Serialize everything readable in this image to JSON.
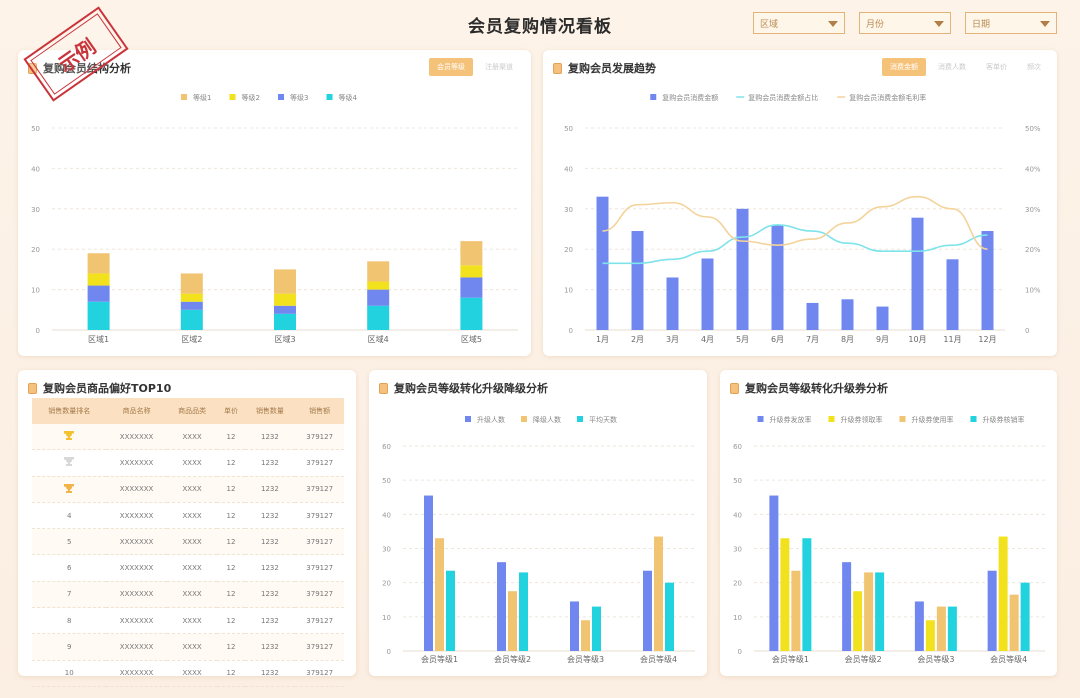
{
  "header": {
    "title": "会员复购情况看板",
    "filters": [
      {
        "label": "区域"
      },
      {
        "label": "月份"
      },
      {
        "label": "日期"
      }
    ],
    "stamp": "示例"
  },
  "colors": {
    "level1": "#f0c471",
    "level2": "#f2e21d",
    "level3": "#7087f0",
    "level4": "#22d2df",
    "bar_blue": "#7087f0",
    "line_cyan": "#7ee3ea",
    "line_orange": "#f4d39b"
  },
  "panels": {
    "structure": {
      "title": "复购会员结构分析",
      "tabs": [
        "会员等级",
        "注册渠道"
      ],
      "active_tab": 0
    },
    "trend": {
      "title": "复购会员发展趋势",
      "tabs": [
        "消费金额",
        "消费人数",
        "客单价",
        "频次"
      ],
      "active_tab": 0
    },
    "top10": {
      "title": "复购会员商品偏好TOP10",
      "columns": [
        "销售数量排名",
        "商品名称",
        "商品品类",
        "单价",
        "销售数量",
        "销售额"
      ],
      "rows": [
        {
          "rank": "",
          "trophy": "gold",
          "name": "XXXXXXX",
          "cat": "XXXX",
          "price": "12",
          "qty": "1232",
          "amount": "379127"
        },
        {
          "rank": "",
          "trophy": "silver",
          "name": "XXXXXXX",
          "cat": "XXXX",
          "price": "12",
          "qty": "1232",
          "amount": "379127"
        },
        {
          "rank": "",
          "trophy": "bronze",
          "name": "XXXXXXX",
          "cat": "XXXX",
          "price": "12",
          "qty": "1232",
          "amount": "379127"
        },
        {
          "rank": "4",
          "trophy": "",
          "name": "XXXXXXX",
          "cat": "XXXX",
          "price": "12",
          "qty": "1232",
          "amount": "379127"
        },
        {
          "rank": "5",
          "trophy": "",
          "name": "XXXXXXX",
          "cat": "XXXX",
          "price": "12",
          "qty": "1232",
          "amount": "379127"
        },
        {
          "rank": "6",
          "trophy": "",
          "name": "XXXXXXX",
          "cat": "XXXX",
          "price": "12",
          "qty": "1232",
          "amount": "379127"
        },
        {
          "rank": "7",
          "trophy": "",
          "name": "XXXXXXX",
          "cat": "XXXX",
          "price": "12",
          "qty": "1232",
          "amount": "379127"
        },
        {
          "rank": "8",
          "trophy": "",
          "name": "XXXXXXX",
          "cat": "XXXX",
          "price": "12",
          "qty": "1232",
          "amount": "379127"
        },
        {
          "rank": "9",
          "trophy": "",
          "name": "XXXXXXX",
          "cat": "XXXX",
          "price": "12",
          "qty": "1232",
          "amount": "379127"
        },
        {
          "rank": "10",
          "trophy": "",
          "name": "XXXXXXX",
          "cat": "XXXX",
          "price": "12",
          "qty": "1232",
          "amount": "379127"
        }
      ]
    },
    "levelConv": {
      "title": "复购会员等级转化升级降级分析"
    },
    "couponConv": {
      "title": "复购会员等级转化升级券分析"
    }
  },
  "chart_data": [
    {
      "id": "structure",
      "type": "bar",
      "stacked": true,
      "categories": [
        "区域1",
        "区域2",
        "区域3",
        "区域4",
        "区域5"
      ],
      "series": [
        {
          "name": "等级1",
          "color": "#f0c471",
          "values": [
            5,
            5,
            6,
            5,
            6
          ]
        },
        {
          "name": "等级2",
          "color": "#f2e21d",
          "values": [
            3,
            2,
            3,
            2,
            3
          ]
        },
        {
          "name": "等级3",
          "color": "#7087f0",
          "values": [
            4,
            2,
            2,
            4,
            5
          ]
        },
        {
          "name": "等级4",
          "color": "#22d2df",
          "values": [
            7,
            5,
            4,
            6,
            8
          ]
        }
      ],
      "yticks": [
        0,
        10,
        20,
        30,
        40,
        50
      ],
      "ylim": [
        0,
        50
      ],
      "legend": "top"
    },
    {
      "id": "trend",
      "type": "bar",
      "categories": [
        "1月",
        "2月",
        "3月",
        "4月",
        "5月",
        "6月",
        "7月",
        "8月",
        "9月",
        "10月",
        "11月",
        "12月"
      ],
      "series": [
        {
          "name": "复购会员消费金额",
          "kind": "bar",
          "axis": "left",
          "color": "#7087f0",
          "values": [
            33,
            24.5,
            13,
            17.7,
            30,
            26,
            6.7,
            7.6,
            5.8,
            27.8,
            17.5,
            24.5
          ]
        },
        {
          "name": "复购会员消费金额占比",
          "kind": "line",
          "axis": "right",
          "color": "#7ee3ea",
          "values": [
            16.5,
            16.5,
            17.5,
            19.5,
            23,
            26,
            24.5,
            21.5,
            19.5,
            19.5,
            21,
            23.5
          ]
        },
        {
          "name": "复购会员消费金额毛利率",
          "kind": "line",
          "axis": "right",
          "color": "#f4d39b",
          "values": [
            24.5,
            31,
            31.5,
            28,
            22,
            21,
            22.5,
            26.5,
            30.5,
            33,
            30,
            20
          ]
        }
      ],
      "yticks": [
        0,
        10,
        20,
        30,
        40,
        50
      ],
      "y2ticks": [
        "0",
        "10%",
        "20%",
        "30%",
        "40%",
        "50%"
      ],
      "ylim": [
        0,
        50
      ],
      "y2lim": [
        0,
        50
      ],
      "legend": "top"
    },
    {
      "id": "levelConv",
      "type": "bar",
      "categories": [
        "会员等级1",
        "会员等级2",
        "会员等级3",
        "会员等级4"
      ],
      "series": [
        {
          "name": "升级人数",
          "color": "#7087f0",
          "values": [
            45.5,
            26,
            14.5,
            23.5
          ]
        },
        {
          "name": "降级人数",
          "color": "#f0c471",
          "values": [
            33,
            17.5,
            9,
            33.5
          ]
        },
        {
          "name": "平均天数",
          "color": "#22d2df",
          "values": [
            23.5,
            23,
            13,
            20
          ]
        }
      ],
      "yticks": [
        0,
        10,
        20,
        30,
        40,
        50,
        60
      ],
      "ylim": [
        0,
        60
      ],
      "legend": "top"
    },
    {
      "id": "couponConv",
      "type": "bar",
      "categories": [
        "会员等级1",
        "会员等级2",
        "会员等级3",
        "会员等级4"
      ],
      "series": [
        {
          "name": "升级券发放率",
          "color": "#7087f0",
          "values": [
            45.5,
            26,
            14.5,
            23.5
          ]
        },
        {
          "name": "升级券领取率",
          "color": "#f2e21d",
          "values": [
            33,
            17.5,
            9,
            33.5
          ]
        },
        {
          "name": "升级券使用率",
          "color": "#f0c471",
          "values": [
            23.5,
            23,
            13,
            16.5
          ]
        },
        {
          "name": "升级券核销率",
          "color": "#22d2df",
          "values": [
            33,
            23,
            13,
            20
          ]
        }
      ],
      "yticks": [
        0,
        10,
        20,
        30,
        40,
        50,
        60
      ],
      "ylim": [
        0,
        60
      ],
      "legend": "top"
    }
  ]
}
